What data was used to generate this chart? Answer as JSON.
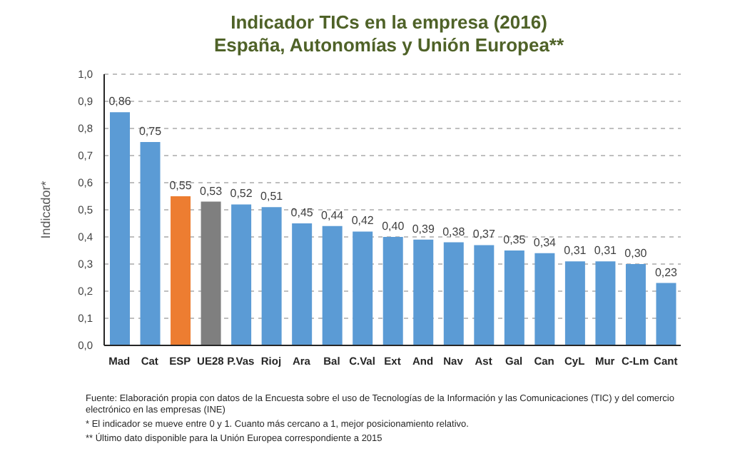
{
  "chart_data": {
    "type": "bar",
    "title": "Indicador TICs en la empresa (2016)",
    "subtitle": "España, Autonomías y Unión Europea**",
    "ylabel": "Indicador*",
    "categories": [
      "Mad",
      "Cat",
      "ESP",
      "UE28",
      "P.Vas",
      "Rioj",
      "Ara",
      "Bal",
      "C.Val",
      "Ext",
      "And",
      "Nav",
      "Ast",
      "Gal",
      "Can",
      "CyL",
      "Mur",
      "C-Lm",
      "Cant"
    ],
    "values": [
      0.86,
      0.75,
      0.55,
      0.53,
      0.52,
      0.51,
      0.45,
      0.44,
      0.42,
      0.4,
      0.39,
      0.38,
      0.37,
      0.35,
      0.34,
      0.31,
      0.31,
      0.3,
      0.23
    ],
    "value_labels": [
      "0,86",
      "0,75",
      "0,55",
      "0,53",
      "0,52",
      "0,51",
      "0,45",
      "0,44",
      "0,42",
      "0,40",
      "0,39",
      "0,38",
      "0,37",
      "0,35",
      "0,34",
      "0,31",
      "0,31",
      "0,30",
      "0,23"
    ],
    "colors": [
      "#5b9bd5",
      "#5b9bd5",
      "#ed7d31",
      "#7f7f7f",
      "#5b9bd5",
      "#5b9bd5",
      "#5b9bd5",
      "#5b9bd5",
      "#5b9bd5",
      "#5b9bd5",
      "#5b9bd5",
      "#5b9bd5",
      "#5b9bd5",
      "#5b9bd5",
      "#5b9bd5",
      "#5b9bd5",
      "#5b9bd5",
      "#5b9bd5",
      "#5b9bd5"
    ],
    "ylim": [
      0,
      1
    ],
    "yticks": [
      {
        "value": 0,
        "label": "0,0"
      },
      {
        "value": 0.1,
        "label": "0,1"
      },
      {
        "value": 0.2,
        "label": "0,2"
      },
      {
        "value": 0.3,
        "label": "0,3"
      },
      {
        "value": 0.4,
        "label": "0,4"
      },
      {
        "value": 0.5,
        "label": "0,5"
      },
      {
        "value": 0.6,
        "label": "0,6"
      },
      {
        "value": 0.7,
        "label": "0,7"
      },
      {
        "value": 0.8,
        "label": "0,8"
      },
      {
        "value": 0.9,
        "label": "0,9"
      },
      {
        "value": 1,
        "label": "1,0"
      }
    ],
    "grid": "y",
    "annotations": [
      "Fuente: Elaboración propia con datos de la Encuesta sobre el uso de Tecnologías de la Información y las Comunicaciones (TIC) y  del comercio electrónico en las empresas (INE)",
      "* El indicador se mueve entre 0 y 1. Cuanto más cercano a 1, mejor posicionamiento relativo.",
      "** Último dato disponible para la Unión Europea correspondiente a 2015"
    ]
  }
}
